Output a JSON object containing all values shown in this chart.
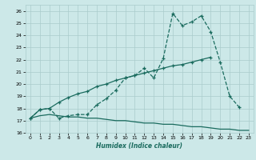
{
  "xlabel": "Humidex (Indice chaleur)",
  "ylabel": "",
  "background_color": "#cce8e8",
  "grid_color": "#aacccc",
  "line_color": "#1a6b5e",
  "xlim": [
    -0.5,
    23.5
  ],
  "ylim": [
    16,
    26.5
  ],
  "xticks": [
    0,
    1,
    2,
    3,
    4,
    5,
    6,
    7,
    8,
    9,
    10,
    11,
    12,
    13,
    14,
    15,
    16,
    17,
    18,
    19,
    20,
    21,
    22,
    23
  ],
  "yticks": [
    16,
    17,
    18,
    19,
    20,
    21,
    22,
    23,
    24,
    25,
    26
  ],
  "line1_y": [
    17.2,
    17.9,
    18.0,
    17.2,
    17.4,
    17.5,
    17.5,
    18.3,
    18.8,
    19.5,
    20.5,
    20.7,
    21.3,
    20.5,
    22.1,
    25.8,
    24.8,
    25.1,
    25.6,
    24.3,
    21.8,
    19.0,
    18.1,
    null
  ],
  "line2_y": [
    17.2,
    17.9,
    18.0,
    18.5,
    18.9,
    19.2,
    19.4,
    19.8,
    20.0,
    20.3,
    20.5,
    20.7,
    20.9,
    21.1,
    21.3,
    21.5,
    21.6,
    21.8,
    22.0,
    22.2,
    null,
    null,
    null,
    null
  ],
  "line3_y": [
    17.2,
    17.4,
    17.5,
    17.4,
    17.3,
    17.3,
    17.2,
    17.2,
    17.1,
    17.0,
    17.0,
    16.9,
    16.8,
    16.8,
    16.7,
    16.7,
    16.6,
    16.5,
    16.5,
    16.4,
    16.3,
    16.3,
    16.2,
    16.2
  ]
}
